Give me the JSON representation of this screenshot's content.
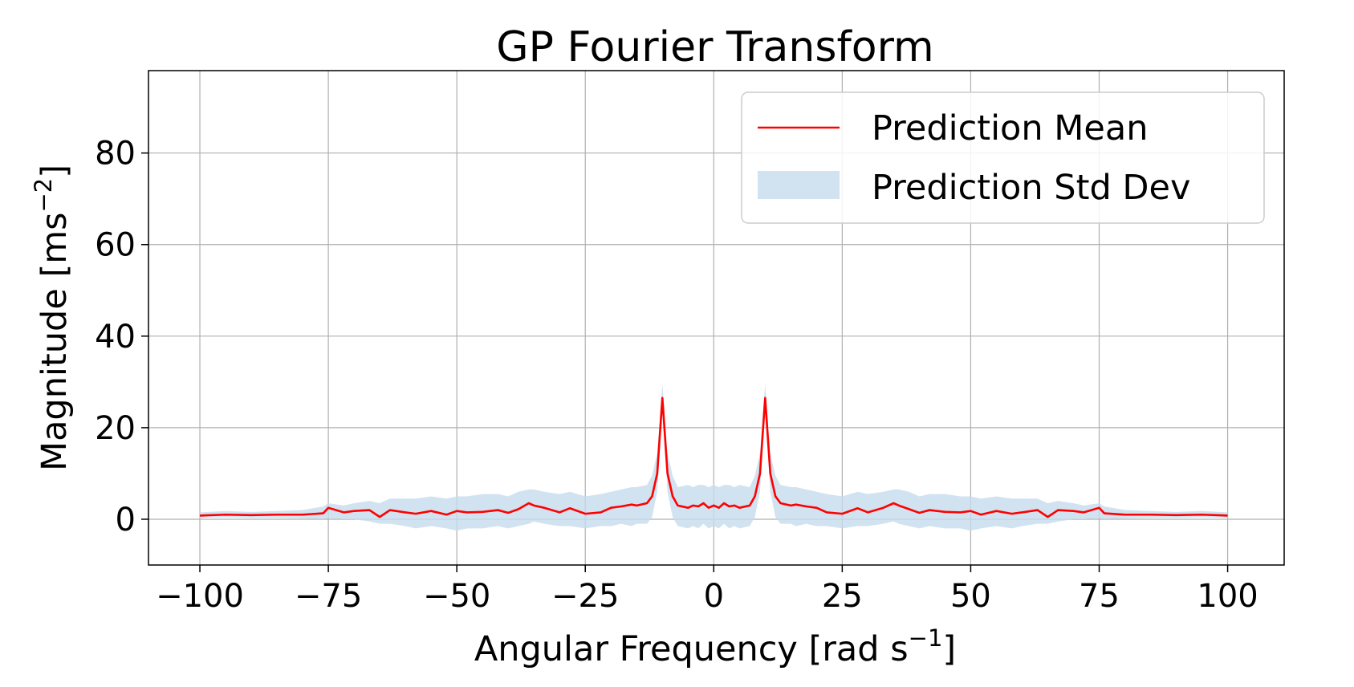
{
  "chart_data": {
    "type": "line",
    "title": "GP Fourier Transform",
    "xlabel": "Angular Frequency [rad s",
    "xlabel_sup": "−1",
    "xlabel_end": "]",
    "ylabel": "Magnitude [ms",
    "ylabel_sup": "−2",
    "ylabel_end": "]",
    "xlim": [
      -110,
      111
    ],
    "ylim": [
      -10,
      98
    ],
    "xticks": [
      -100,
      -75,
      -50,
      -25,
      0,
      25,
      50,
      75,
      100
    ],
    "xtick_labels": [
      "−100",
      "−75",
      "−50",
      "−25",
      "0",
      "25",
      "50",
      "75",
      "100"
    ],
    "yticks": [
      0,
      20,
      40,
      60,
      80
    ],
    "ytick_labels": [
      "0",
      "20",
      "40",
      "60",
      "80"
    ],
    "grid": true,
    "legend_position": "top-right",
    "colors": {
      "mean": "#ff0000",
      "band": "#c6dbec",
      "grid": "#b0b0b0"
    },
    "series": [
      {
        "name": "Prediction Mean",
        "x": [
          -100,
          -95,
          -90,
          -85,
          -80,
          -76,
          -75,
          -72,
          -70,
          -67,
          -65,
          -63,
          -60,
          -58,
          -55,
          -52,
          -50,
          -48,
          -45,
          -42,
          -40,
          -38,
          -36,
          -35,
          -33,
          -30,
          -28,
          -25,
          -22,
          -20,
          -18,
          -16,
          -15,
          -13,
          -12,
          -11,
          -10,
          -9,
          -8,
          -7,
          -5,
          -4,
          -3,
          -2,
          -1,
          0,
          1,
          2,
          3,
          4,
          5,
          7,
          8,
          9,
          10,
          11,
          12,
          13,
          15,
          16,
          18,
          20,
          22,
          25,
          28,
          30,
          33,
          35,
          36,
          38,
          40,
          42,
          45,
          48,
          50,
          52,
          55,
          58,
          60,
          63,
          65,
          67,
          70,
          72,
          75,
          76,
          80,
          85,
          90,
          95,
          100
        ],
        "y": [
          0.8,
          1.0,
          0.9,
          1.0,
          1.0,
          1.3,
          2.5,
          1.5,
          1.8,
          2.0,
          0.5,
          2.0,
          1.5,
          1.2,
          1.8,
          1.0,
          1.8,
          1.5,
          1.6,
          2.0,
          1.4,
          2.2,
          3.5,
          3.0,
          2.5,
          1.5,
          2.4,
          1.2,
          1.5,
          2.5,
          2.8,
          3.2,
          3.0,
          3.5,
          5.0,
          10.0,
          26.5,
          10.0,
          5.0,
          3.0,
          2.5,
          3.0,
          2.8,
          3.5,
          2.5,
          3.0,
          2.5,
          3.5,
          2.8,
          3.0,
          2.5,
          3.0,
          5.0,
          10.0,
          26.5,
          10.0,
          5.0,
          3.5,
          3.0,
          3.2,
          2.8,
          2.5,
          1.5,
          1.2,
          2.4,
          1.5,
          2.5,
          3.5,
          3.0,
          2.2,
          1.4,
          2.0,
          1.6,
          1.5,
          1.8,
          1.0,
          1.8,
          1.2,
          1.5,
          2.0,
          0.5,
          2.0,
          1.8,
          1.5,
          2.5,
          1.3,
          1.0,
          1.0,
          0.9,
          1.0,
          0.8
        ]
      },
      {
        "name": "Prediction Std Dev",
        "x": [
          -100,
          -95,
          -90,
          -85,
          -80,
          -76,
          -75,
          -72,
          -70,
          -67,
          -65,
          -63,
          -60,
          -58,
          -55,
          -52,
          -50,
          -48,
          -45,
          -42,
          -40,
          -38,
          -36,
          -35,
          -33,
          -30,
          -28,
          -25,
          -22,
          -20,
          -18,
          -16,
          -15,
          -13,
          -12,
          -11,
          -10,
          -9,
          -8,
          -7,
          -5,
          -4,
          -3,
          -2,
          -1,
          0,
          1,
          2,
          3,
          4,
          5,
          7,
          8,
          9,
          10,
          11,
          12,
          13,
          15,
          16,
          18,
          20,
          22,
          25,
          28,
          30,
          33,
          35,
          36,
          38,
          40,
          42,
          45,
          48,
          50,
          52,
          55,
          58,
          60,
          63,
          65,
          67,
          70,
          72,
          75,
          76,
          80,
          85,
          90,
          95,
          100
        ],
        "lower": [
          0.3,
          0.4,
          0.3,
          0.3,
          0.2,
          0.0,
          0.2,
          0.0,
          0.0,
          -0.5,
          -1.0,
          -1.0,
          -1.5,
          -2.0,
          -1.5,
          -2.0,
          -2.5,
          -2.0,
          -2.0,
          -1.5,
          -2.0,
          -1.5,
          -1.0,
          -0.5,
          -1.0,
          -1.5,
          -1.5,
          -2.0,
          -1.5,
          -1.5,
          -1.0,
          -1.5,
          -1.0,
          -1.0,
          0.5,
          6.0,
          24.0,
          6.0,
          0.5,
          -1.5,
          -2.0,
          -1.5,
          -2.0,
          -1.0,
          -2.0,
          -1.5,
          -2.0,
          -1.0,
          -2.0,
          -1.5,
          -2.0,
          -1.5,
          0.5,
          6.0,
          24.0,
          6.0,
          0.5,
          -1.0,
          -1.0,
          -1.5,
          -1.0,
          -1.5,
          -1.5,
          -2.0,
          -1.5,
          -1.5,
          -1.0,
          -0.5,
          -1.0,
          -1.5,
          -2.0,
          -1.5,
          -2.0,
          -2.0,
          -2.5,
          -2.0,
          -1.5,
          -2.0,
          -1.5,
          -1.0,
          -1.0,
          -0.5,
          0.0,
          0.0,
          0.2,
          0.0,
          0.2,
          0.3,
          0.3,
          0.4,
          0.3
        ],
        "upper": [
          1.5,
          1.8,
          1.6,
          1.8,
          2.0,
          2.8,
          3.5,
          3.0,
          3.5,
          4.0,
          3.5,
          4.5,
          4.5,
          4.5,
          5.0,
          4.5,
          5.0,
          5.0,
          5.5,
          5.5,
          5.0,
          6.0,
          6.5,
          6.5,
          6.0,
          5.5,
          6.0,
          5.0,
          5.5,
          6.0,
          6.5,
          7.0,
          7.0,
          7.5,
          9.5,
          14.5,
          29.5,
          14.5,
          9.5,
          7.0,
          7.5,
          7.0,
          7.5,
          7.5,
          7.0,
          7.5,
          7.0,
          7.5,
          7.5,
          7.0,
          7.5,
          7.0,
          9.5,
          14.5,
          29.5,
          14.5,
          9.5,
          7.5,
          7.0,
          7.0,
          6.5,
          6.0,
          5.5,
          5.0,
          6.0,
          5.5,
          6.0,
          6.5,
          6.5,
          6.0,
          5.0,
          5.5,
          5.5,
          5.0,
          5.0,
          4.5,
          5.0,
          4.5,
          4.5,
          4.5,
          3.5,
          4.0,
          3.5,
          3.0,
          3.5,
          2.8,
          2.0,
          1.8,
          1.6,
          1.8,
          1.5
        ]
      }
    ]
  }
}
